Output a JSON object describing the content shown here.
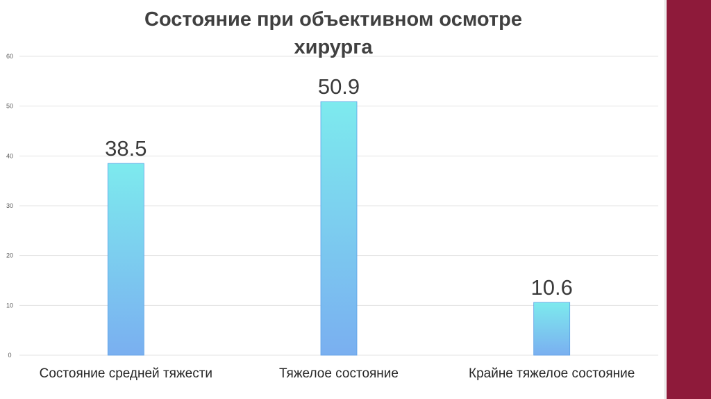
{
  "chart_data": {
    "type": "bar",
    "title": "Состояние при объективном осмотре\nхирурга",
    "xlabel": "",
    "ylabel": "",
    "categories": [
      "Состояние средней тяжести",
      "Тяжелое состояние",
      "Крайне тяжелое состояние"
    ],
    "values": [
      38.5,
      50.9,
      10.6
    ],
    "data_labels": [
      "38.5",
      "50.9",
      "10.6"
    ],
    "ylim": [
      0,
      60
    ],
    "yticks": [
      "0",
      "10",
      "20",
      "30",
      "40",
      "50",
      "60"
    ],
    "grid": true,
    "legend": "none",
    "colors": {
      "bar_top": "#7deaee",
      "bar_bottom": "#7aaff0",
      "bar_edge": "#5aa0e6",
      "grid": "#e3e3e3",
      "accent_band": "#8e1a3a"
    }
  }
}
